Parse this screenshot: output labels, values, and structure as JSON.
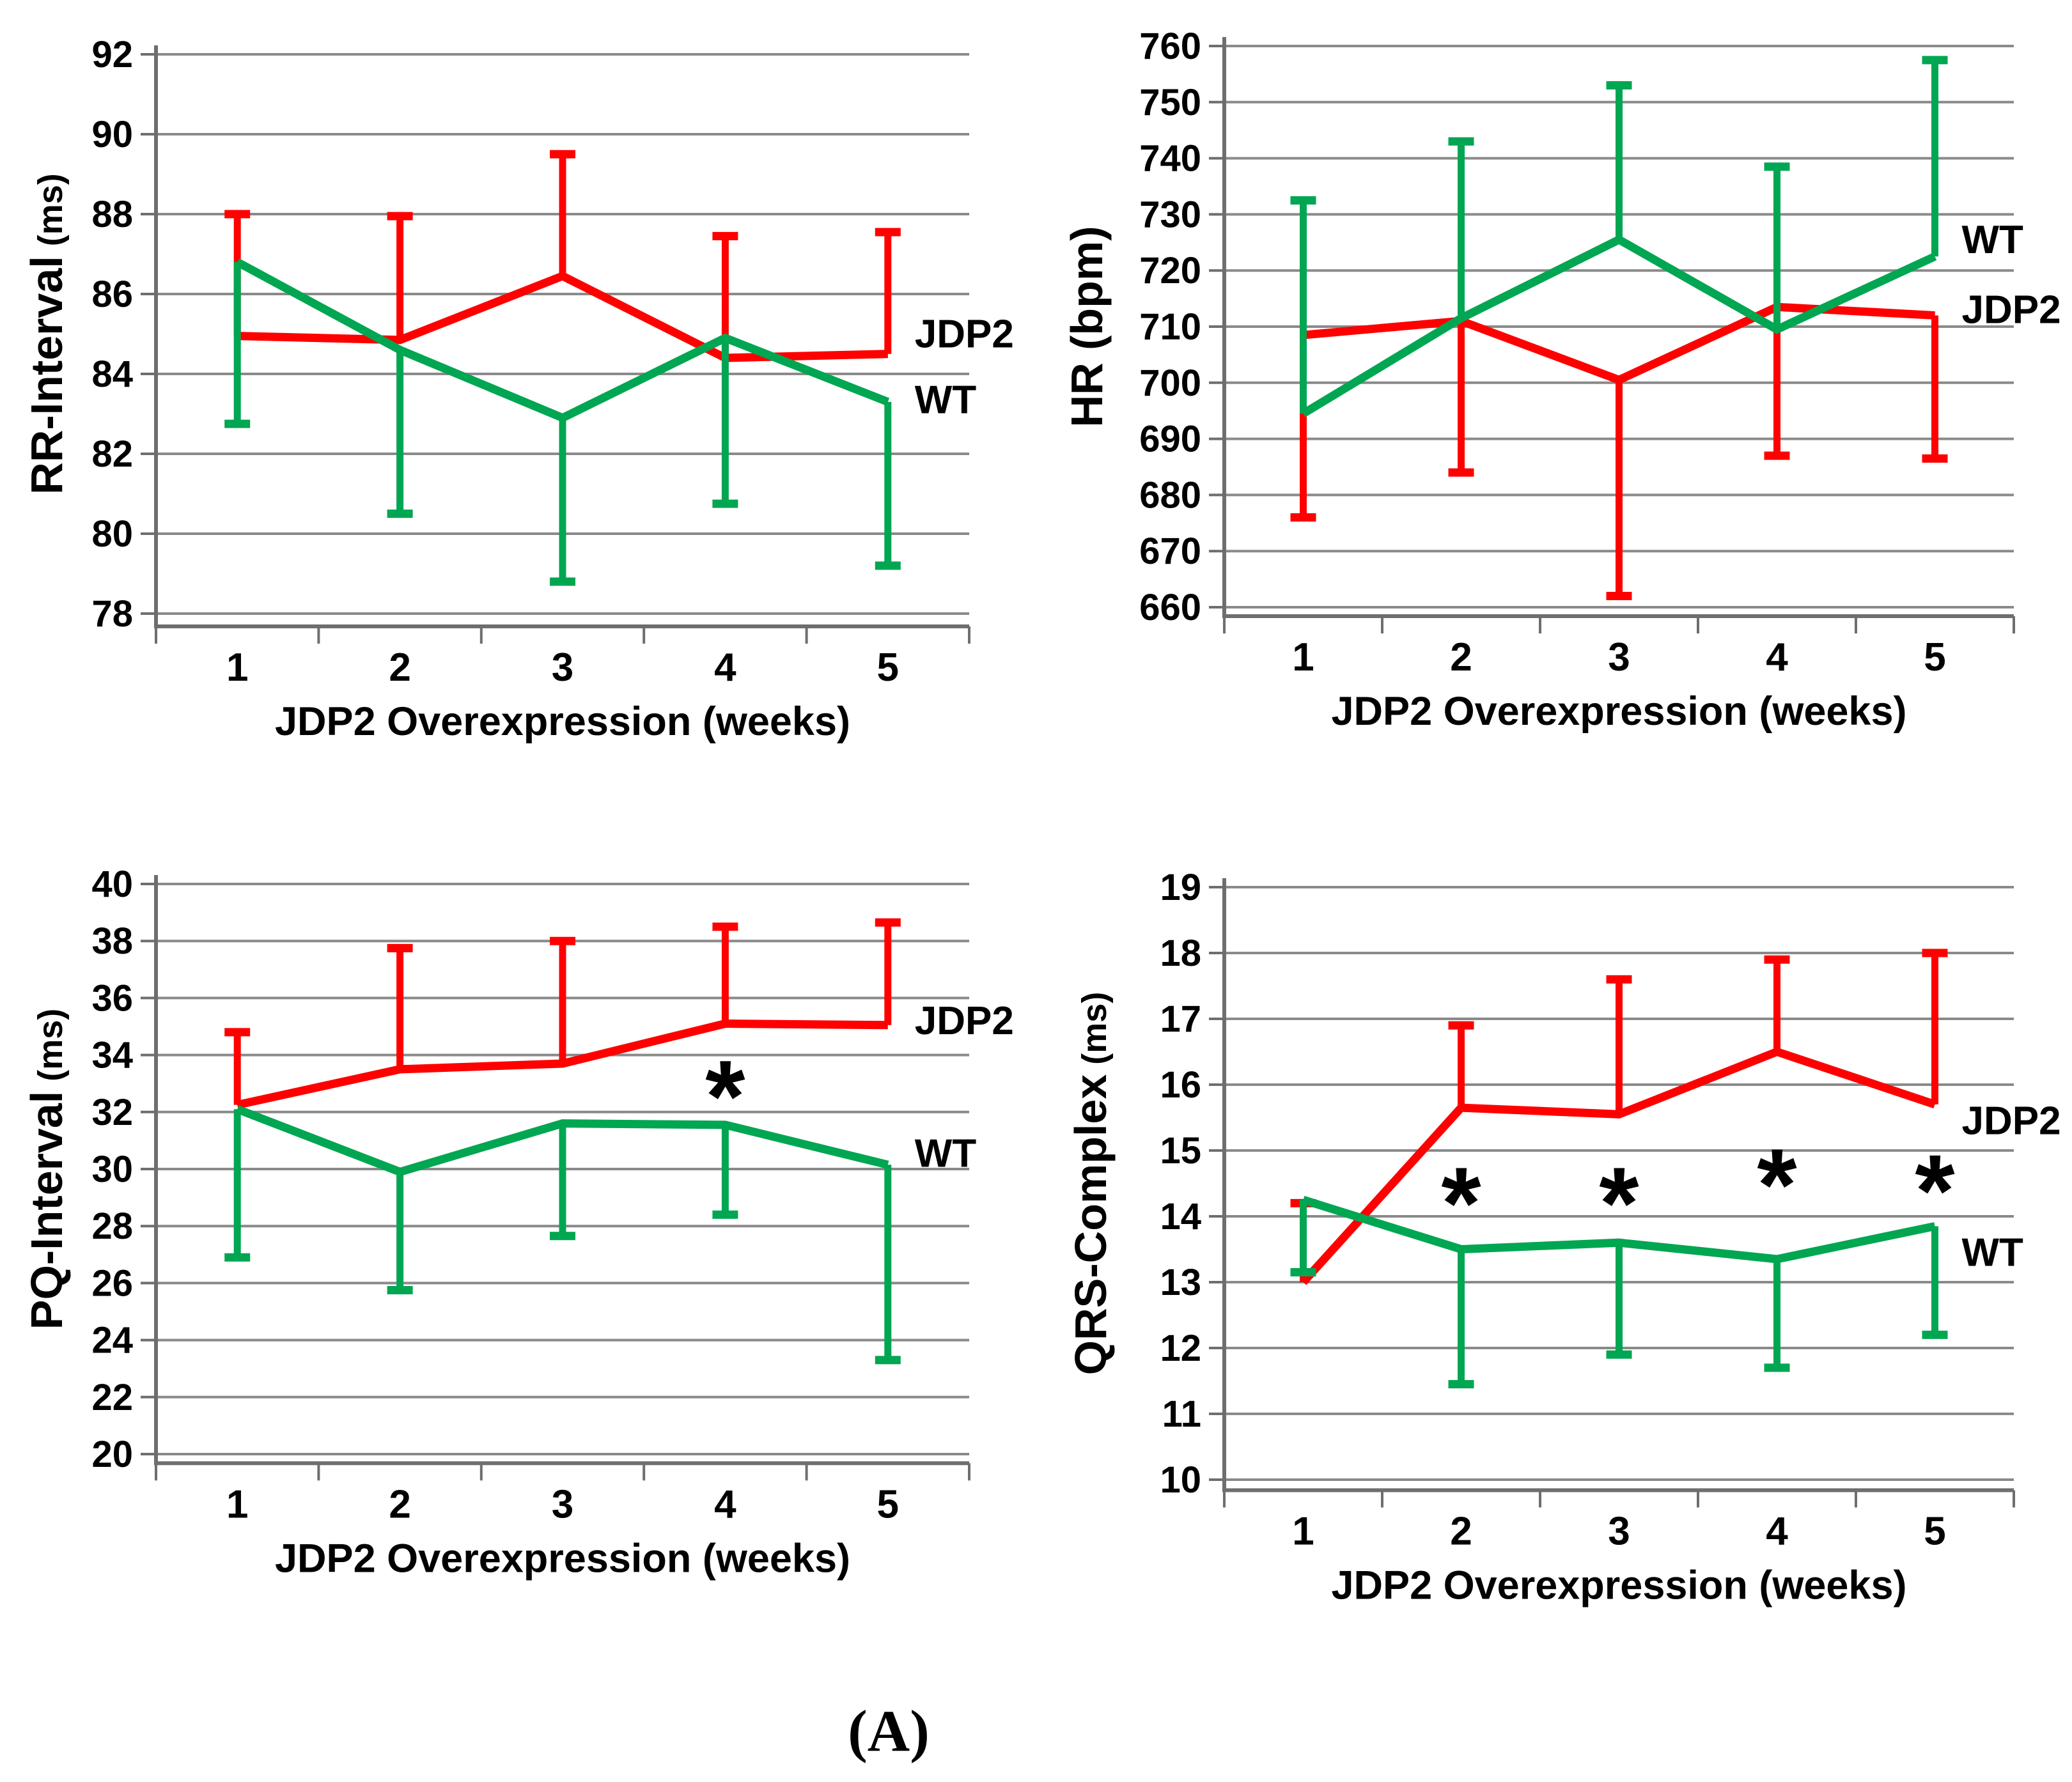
{
  "figure": {
    "caption": "(A)"
  },
  "colors": {
    "jdp2": "#FF0000",
    "wt": "#00A651",
    "grid": "#8A8A8A",
    "axis": "#6E6E6E",
    "text": "#000000",
    "background": "#FFFFFF"
  },
  "significance_marker": "*",
  "chart_data": [
    {
      "id": "rr-interval",
      "type": "line",
      "title": "",
      "ylabel": "RR-Interval",
      "ylabel_unit": "(ms)",
      "xlabel": "JDP2 Overexpression (weeks)",
      "categories": [
        "1",
        "2",
        "3",
        "4",
        "5"
      ],
      "yticks": [
        78,
        80,
        82,
        84,
        86,
        88,
        90,
        92
      ],
      "ylim": [
        78,
        92
      ],
      "grid": true,
      "legend_position": "right-of-last-point",
      "series": [
        {
          "name": "JDP2",
          "color_key": "jdp2",
          "values": [
            84.95,
            84.85,
            86.45,
            84.4,
            84.5
          ],
          "error_dir": "up",
          "error_tips": [
            88.0,
            87.95,
            89.5,
            87.45,
            87.55
          ],
          "label_y": 85.0
        },
        {
          "name": "WT",
          "color_key": "wt",
          "values": [
            86.8,
            84.6,
            82.9,
            84.9,
            83.3
          ],
          "error_dir": "down",
          "error_tips": [
            82.75,
            80.5,
            78.8,
            80.75,
            79.2
          ],
          "label_y": 83.35
        }
      ],
      "asterisks": []
    },
    {
      "id": "hr",
      "type": "line",
      "title": "",
      "ylabel": "HR (bpm)",
      "ylabel_unit": "",
      "xlabel": "JDP2 Overexpression (weeks)",
      "categories": [
        "1",
        "2",
        "3",
        "4",
        "5"
      ],
      "yticks": [
        660,
        670,
        680,
        690,
        700,
        710,
        720,
        730,
        740,
        750,
        760
      ],
      "ylim": [
        660,
        760
      ],
      "grid": true,
      "legend_position": "right-of-last-point",
      "series": [
        {
          "name": "JDP2",
          "color_key": "jdp2",
          "values": [
            708.5,
            711,
            700.5,
            713.5,
            712
          ],
          "error_dir": "down",
          "error_tips": [
            676,
            684,
            662,
            687,
            686.5
          ],
          "label_y": 713
        },
        {
          "name": "WT",
          "color_key": "wt",
          "values": [
            694.5,
            711.5,
            725.5,
            709.5,
            722.5
          ],
          "error_dir": "up",
          "error_tips": [
            732.5,
            743,
            753,
            738.5,
            757.5
          ],
          "label_y": 725.5
        }
      ],
      "asterisks": []
    },
    {
      "id": "pq-interval",
      "type": "line",
      "title": "",
      "ylabel": "PQ-Interval",
      "ylabel_unit": "(ms)",
      "xlabel": "JDP2 Overexpression (weeks)",
      "categories": [
        "1",
        "2",
        "3",
        "4",
        "5"
      ],
      "yticks": [
        20,
        22,
        24,
        26,
        28,
        30,
        32,
        34,
        36,
        38,
        40
      ],
      "ylim": [
        20,
        40
      ],
      "grid": true,
      "legend_position": "right-of-last-point",
      "series": [
        {
          "name": "JDP2",
          "color_key": "jdp2",
          "values": [
            32.25,
            33.5,
            33.7,
            35.1,
            35.05
          ],
          "error_dir": "up",
          "error_tips": [
            34.8,
            37.75,
            38.0,
            38.5,
            38.65
          ],
          "label_y": 35.2
        },
        {
          "name": "WT",
          "color_key": "wt",
          "values": [
            32.1,
            29.9,
            31.6,
            31.55,
            30.15
          ],
          "error_dir": "down",
          "error_tips": [
            26.9,
            25.75,
            27.65,
            28.4,
            23.3
          ],
          "label_y": 30.55
        }
      ],
      "asterisks": [
        {
          "week": 4,
          "y": 33.2
        }
      ]
    },
    {
      "id": "qrs-complex",
      "type": "line",
      "title": "",
      "ylabel": "QRS-Complex",
      "ylabel_unit": "(ms)",
      "xlabel": "JDP2 Overexpression (weeks)",
      "categories": [
        "1",
        "2",
        "3",
        "4",
        "5"
      ],
      "yticks": [
        10,
        11,
        12,
        13,
        14,
        15,
        16,
        17,
        18,
        19
      ],
      "ylim": [
        10,
        19
      ],
      "grid": true,
      "legend_position": "right-of-last-point",
      "series": [
        {
          "name": "JDP2",
          "color_key": "jdp2",
          "values": [
            13.0,
            15.65,
            15.55,
            16.5,
            15.7
          ],
          "error_dir": "up",
          "error_tips": [
            14.2,
            16.9,
            17.6,
            17.9,
            18.0
          ],
          "label_y": 15.45
        },
        {
          "name": "WT",
          "color_key": "wt",
          "values": [
            14.25,
            13.5,
            13.6,
            13.35,
            13.85
          ],
          "error_dir": "down",
          "error_tips": [
            13.15,
            11.45,
            11.9,
            11.7,
            12.2
          ],
          "label_y": 13.45
        }
      ],
      "asterisks": [
        {
          "week": 2,
          "y": 14.48
        },
        {
          "week": 3,
          "y": 14.48
        },
        {
          "week": 4,
          "y": 14.76
        },
        {
          "week": 5,
          "y": 14.67
        }
      ]
    }
  ]
}
